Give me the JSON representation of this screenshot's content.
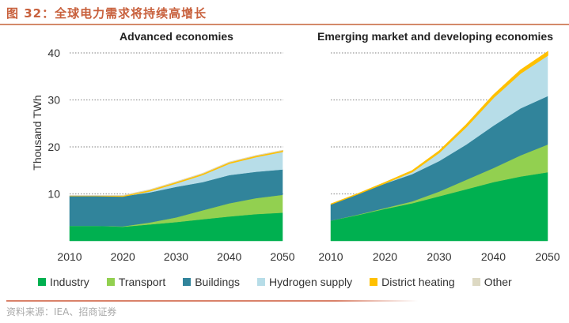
{
  "figure": {
    "title": "图 32：全球电力需求将持续高增长",
    "source": "资料来源：IEA、招商证券"
  },
  "chart_data": [
    {
      "type": "area",
      "stacked": true,
      "title": "Advanced economies",
      "xlabel": "",
      "ylabel": "Thousand TWh",
      "x": [
        2010,
        2015,
        2020,
        2025,
        2030,
        2035,
        2040,
        2045,
        2050
      ],
      "xticks": [
        "2010",
        "2020",
        "2030",
        "2040",
        "2050"
      ],
      "yticks": [
        "10",
        "20",
        "30",
        "40"
      ],
      "ylim": [
        0,
        40
      ],
      "grid": "horizontal-dotted",
      "series": [
        {
          "name": "Industry",
          "color": "#00b050",
          "values": [
            3.2,
            3.2,
            3.0,
            3.5,
            4.0,
            4.6,
            5.2,
            5.7,
            6.0
          ]
        },
        {
          "name": "Transport",
          "color": "#92d050",
          "values": [
            0.0,
            0.0,
            0.1,
            0.4,
            1.0,
            1.9,
            2.8,
            3.4,
            3.8
          ]
        },
        {
          "name": "Buildings",
          "color": "#31849b",
          "values": [
            6.4,
            6.4,
            6.4,
            6.4,
            6.5,
            6.0,
            6.0,
            5.6,
            5.4
          ]
        },
        {
          "name": "Hydrogen supply",
          "color": "#b7dde8",
          "values": [
            0.0,
            0.0,
            0.0,
            0.3,
            0.8,
            1.6,
            2.5,
            3.2,
            3.8
          ]
        },
        {
          "name": "District heating",
          "color": "#ffc000",
          "values": [
            0.0,
            0.0,
            0.1,
            0.2,
            0.2,
            0.2,
            0.2,
            0.2,
            0.2
          ]
        },
        {
          "name": "Other",
          "color": "#ddd9c3",
          "values": [
            0.1,
            0.1,
            0.1,
            0.1,
            0.1,
            0.1,
            0.1,
            0.1,
            0.1
          ]
        }
      ]
    },
    {
      "type": "area",
      "stacked": true,
      "title": "Emerging market and developing economies",
      "xlabel": "",
      "ylabel": "",
      "x": [
        2010,
        2015,
        2020,
        2025,
        2030,
        2035,
        2040,
        2045,
        2050
      ],
      "xticks": [
        "2010",
        "2020",
        "2030",
        "2040",
        "2050"
      ],
      "yticks": [
        "10",
        "20",
        "30",
        "40"
      ],
      "ylim": [
        0,
        40
      ],
      "grid": "horizontal-dotted",
      "series": [
        {
          "name": "Industry",
          "color": "#00b050",
          "values": [
            4.3,
            5.5,
            6.8,
            8.0,
            9.5,
            11.0,
            12.5,
            13.7,
            14.6
          ]
        },
        {
          "name": "Transport",
          "color": "#92d050",
          "values": [
            0.0,
            0.1,
            0.2,
            0.4,
            1.0,
            2.0,
            3.0,
            4.5,
            5.9
          ]
        },
        {
          "name": "Buildings",
          "color": "#31849b",
          "values": [
            3.5,
            4.4,
            5.2,
            5.8,
            6.5,
            7.5,
            9.0,
            10.0,
            10.3
          ]
        },
        {
          "name": "Hydrogen supply",
          "color": "#b7dde8",
          "values": [
            0.0,
            0.0,
            0.1,
            0.5,
            1.8,
            3.8,
            6.0,
            7.5,
            8.7
          ]
        },
        {
          "name": "District heating",
          "color": "#ffc000",
          "values": [
            0.0,
            0.0,
            0.1,
            0.2,
            0.3,
            0.4,
            0.5,
            0.6,
            0.7
          ]
        },
        {
          "name": "Other",
          "color": "#ddd9c3",
          "values": [
            0.0,
            0.0,
            0.0,
            0.0,
            0.0,
            0.0,
            0.0,
            0.0,
            0.0
          ]
        }
      ]
    }
  ],
  "legend": {
    "placement": "bottom",
    "items": [
      {
        "label": "Industry",
        "color": "#00b050"
      },
      {
        "label": "Transport",
        "color": "#92d050"
      },
      {
        "label": "Buildings",
        "color": "#31849b"
      },
      {
        "label": "Hydrogen supply",
        "color": "#b7dde8"
      },
      {
        "label": "District heating",
        "color": "#ffc000"
      },
      {
        "label": "Other",
        "color": "#ddd9c3"
      }
    ]
  }
}
